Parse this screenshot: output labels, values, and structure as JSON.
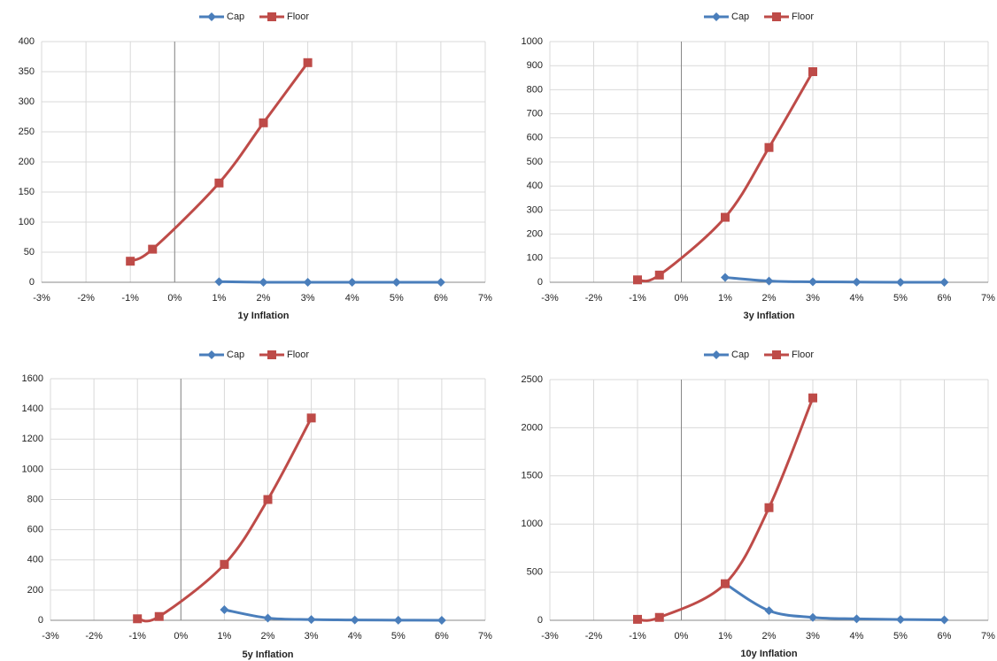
{
  "chart_data": [
    {
      "type": "line",
      "xlabel": "1y Inflation",
      "grid": true,
      "xlim": [
        -3,
        7
      ],
      "xticks": [
        {
          "value": -3,
          "label": "-3%"
        },
        {
          "value": -2,
          "label": "-2%"
        },
        {
          "value": -1,
          "label": "-1%"
        },
        {
          "value": 0,
          "label": "0%"
        },
        {
          "value": 1,
          "label": "1%"
        },
        {
          "value": 2,
          "label": "2%"
        },
        {
          "value": 3,
          "label": "3%"
        },
        {
          "value": 4,
          "label": "4%"
        },
        {
          "value": 5,
          "label": "5%"
        },
        {
          "value": 6,
          "label": "6%"
        },
        {
          "value": 7,
          "label": "7%"
        }
      ],
      "ylim": [
        0,
        400
      ],
      "yticks": [
        0,
        50,
        100,
        150,
        200,
        250,
        300,
        350,
        400
      ],
      "series": [
        {
          "name": "Cap",
          "color": "#4a7ebb",
          "marker": "diamond",
          "x": [
            1,
            2,
            3,
            4,
            5,
            6
          ],
          "values": [
            1,
            0,
            0,
            0,
            0,
            0
          ]
        },
        {
          "name": "Floor",
          "color": "#be4b48",
          "marker": "square",
          "x": [
            -1,
            -0.5,
            1,
            2,
            3
          ],
          "values": [
            35,
            55,
            165,
            265,
            365
          ]
        }
      ]
    },
    {
      "type": "line",
      "xlabel": "3y Inflation",
      "grid": true,
      "xlim": [
        -3,
        7
      ],
      "xticks": [
        {
          "value": -3,
          "label": "-3%"
        },
        {
          "value": -2,
          "label": "-2%"
        },
        {
          "value": -1,
          "label": "-1%"
        },
        {
          "value": 0,
          "label": "0%"
        },
        {
          "value": 1,
          "label": "1%"
        },
        {
          "value": 2,
          "label": "2%"
        },
        {
          "value": 3,
          "label": "3%"
        },
        {
          "value": 4,
          "label": "4%"
        },
        {
          "value": 5,
          "label": "5%"
        },
        {
          "value": 6,
          "label": "6%"
        },
        {
          "value": 7,
          "label": "7%"
        }
      ],
      "ylim": [
        0,
        1000
      ],
      "yticks": [
        0,
        100,
        200,
        300,
        400,
        500,
        600,
        700,
        800,
        900,
        1000
      ],
      "series": [
        {
          "name": "Cap",
          "color": "#4a7ebb",
          "marker": "diamond",
          "x": [
            1,
            2,
            3,
            4,
            5,
            6
          ],
          "values": [
            20,
            5,
            2,
            1,
            0,
            0
          ]
        },
        {
          "name": "Floor",
          "color": "#be4b48",
          "marker": "square",
          "x": [
            -1,
            -0.5,
            1,
            2,
            3
          ],
          "values": [
            10,
            30,
            270,
            560,
            875
          ]
        }
      ]
    },
    {
      "type": "line",
      "xlabel": "5y Inflation",
      "grid": true,
      "xlim": [
        -3,
        7
      ],
      "xticks": [
        {
          "value": -3,
          "label": "-3%"
        },
        {
          "value": -2,
          "label": "-2%"
        },
        {
          "value": -1,
          "label": "-1%"
        },
        {
          "value": 0,
          "label": "0%"
        },
        {
          "value": 1,
          "label": "1%"
        },
        {
          "value": 2,
          "label": "2%"
        },
        {
          "value": 3,
          "label": "3%"
        },
        {
          "value": 4,
          "label": "4%"
        },
        {
          "value": 5,
          "label": "5%"
        },
        {
          "value": 6,
          "label": "6%"
        },
        {
          "value": 7,
          "label": "7%"
        }
      ],
      "ylim": [
        0,
        1600
      ],
      "yticks": [
        0,
        200,
        400,
        600,
        800,
        1000,
        1200,
        1400,
        1600
      ],
      "series": [
        {
          "name": "Cap",
          "color": "#4a7ebb",
          "marker": "diamond",
          "x": [
            1,
            2,
            3,
            4,
            5,
            6
          ],
          "values": [
            70,
            15,
            5,
            2,
            1,
            0
          ]
        },
        {
          "name": "Floor",
          "color": "#be4b48",
          "marker": "square",
          "x": [
            -1,
            -0.5,
            1,
            2,
            3
          ],
          "values": [
            10,
            25,
            370,
            800,
            1340
          ]
        }
      ]
    },
    {
      "type": "line",
      "xlabel": "10y Inflation",
      "grid": true,
      "xlim": [
        -3,
        7
      ],
      "xticks": [
        {
          "value": -3,
          "label": "-3%"
        },
        {
          "value": -2,
          "label": "-2%"
        },
        {
          "value": -1,
          "label": "-1%"
        },
        {
          "value": 0,
          "label": "0%"
        },
        {
          "value": 1,
          "label": "1%"
        },
        {
          "value": 2,
          "label": "2%"
        },
        {
          "value": 3,
          "label": "3%"
        },
        {
          "value": 4,
          "label": "4%"
        },
        {
          "value": 5,
          "label": "5%"
        },
        {
          "value": 6,
          "label": "6%"
        },
        {
          "value": 7,
          "label": "7%"
        }
      ],
      "ylim": [
        0,
        2500
      ],
      "yticks": [
        0,
        500,
        1000,
        1500,
        2000,
        2500
      ],
      "series": [
        {
          "name": "Cap",
          "color": "#4a7ebb",
          "marker": "diamond",
          "x": [
            1,
            2,
            3,
            4,
            5,
            6
          ],
          "values": [
            380,
            100,
            30,
            15,
            8,
            5
          ]
        },
        {
          "name": "Floor",
          "color": "#be4b48",
          "marker": "square",
          "x": [
            -1,
            -0.5,
            1,
            2,
            3
          ],
          "values": [
            10,
            30,
            380,
            1170,
            2310
          ]
        }
      ]
    }
  ]
}
